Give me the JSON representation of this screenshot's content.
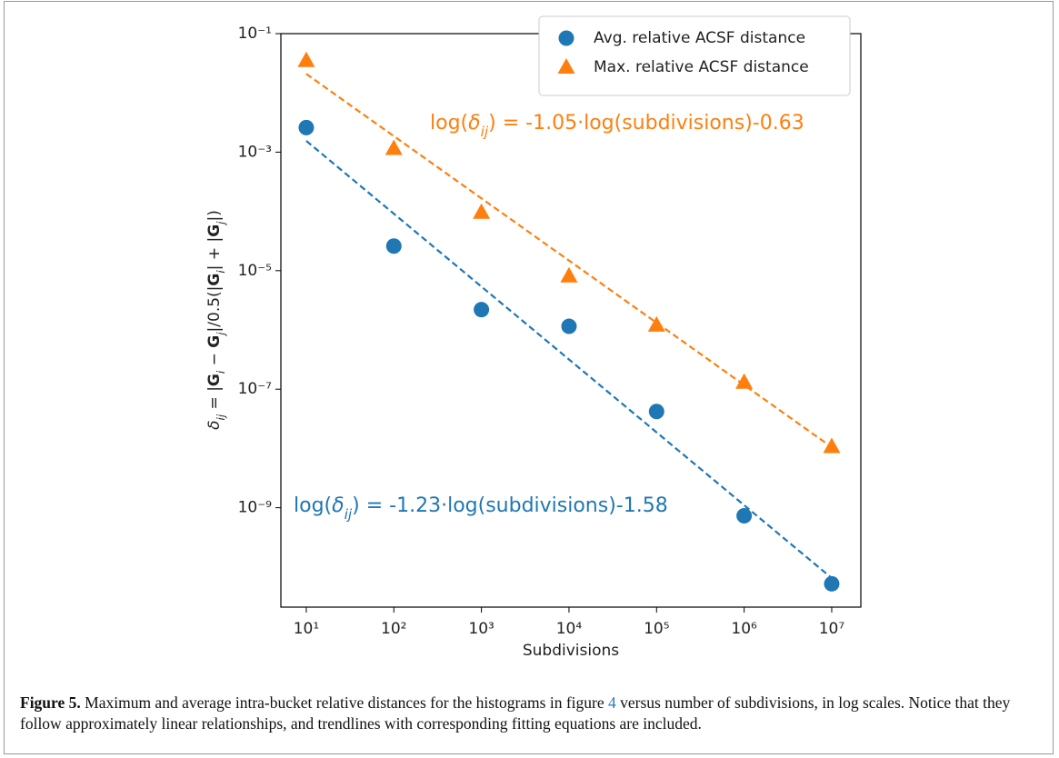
{
  "chart_data": {
    "type": "scatter",
    "log_x": true,
    "log_y": true,
    "xlabel": "Subdivisions",
    "ylabel_parts": [
      {
        "text": "δ",
        "style": "italic"
      },
      {
        "text": "ij",
        "style": "sub-italic"
      },
      {
        "text": " = |",
        "style": "normal"
      },
      {
        "text": "G",
        "style": "bold"
      },
      {
        "text": "i",
        "style": "sub-italic"
      },
      {
        "text": " − ",
        "style": "normal"
      },
      {
        "text": "G",
        "style": "bold"
      },
      {
        "text": "j",
        "style": "sub-italic"
      },
      {
        "text": "|/0.5(|",
        "style": "normal"
      },
      {
        "text": "G",
        "style": "bold"
      },
      {
        "text": "i",
        "style": "sub-italic"
      },
      {
        "text": "| + |",
        "style": "normal"
      },
      {
        "text": "G",
        "style": "bold"
      },
      {
        "text": "j",
        "style": "sub-italic"
      },
      {
        "text": "|)",
        "style": "normal"
      }
    ],
    "xlim": [
      5.13,
      21500000
    ],
    "ylim": [
      2.1e-11,
      0.1
    ],
    "xticks": [
      {
        "value": 10,
        "label": "10¹"
      },
      {
        "value": 100,
        "label": "10²"
      },
      {
        "value": 1000,
        "label": "10³"
      },
      {
        "value": 10000,
        "label": "10⁴"
      },
      {
        "value": 100000,
        "label": "10⁵"
      },
      {
        "value": 1000000,
        "label": "10⁶"
      },
      {
        "value": 10000000,
        "label": "10⁷"
      }
    ],
    "yticks": [
      {
        "value": 0.1,
        "label": "10⁻¹"
      },
      {
        "value": 0.001,
        "label": "10⁻³"
      },
      {
        "value": 1e-05,
        "label": "10⁻⁵"
      },
      {
        "value": 1e-07,
        "label": "10⁻⁷"
      },
      {
        "value": 1e-09,
        "label": "10⁻⁹"
      }
    ],
    "legend": "upper right",
    "x": [
      10,
      100,
      1000,
      10000,
      100000,
      1000000,
      10000000
    ],
    "series": [
      {
        "name": "Avg. relative ACSF distance",
        "color": "#1f77b4",
        "marker": "circle",
        "values": [
          0.0026,
          2.6e-05,
          2.2e-06,
          1.15e-06,
          4.2e-08,
          7.3e-10,
          5.2e-11
        ],
        "trend": {
          "x": [
            10,
            10000000
          ],
          "values": [
            0.00155,
            6.5e-11
          ]
        },
        "annotation": [
          {
            "text": "log(",
            "style": "normal"
          },
          {
            "text": "δ",
            "style": "italic"
          },
          {
            "text": "ij",
            "style": "sub-italic"
          },
          {
            "text": ") = -1.23·log(subdivisions)-1.58",
            "style": "normal"
          }
        ]
      },
      {
        "name": "Max. relative ACSF distance",
        "color": "#ff7f0e",
        "marker": "triangle",
        "values": [
          0.035,
          0.00115,
          9.6e-05,
          8.1e-06,
          1.2e-06,
          1.3e-07,
          1.07e-08
        ],
        "trend": {
          "x": [
            10,
            10000000
          ],
          "values": [
            0.0209,
            1.05e-08
          ]
        },
        "annotation": [
          {
            "text": "log(",
            "style": "normal"
          },
          {
            "text": "δ",
            "style": "italic"
          },
          {
            "text": "ij",
            "style": "sub-italic"
          },
          {
            "text": ") = -1.05·log(subdivisions)-0.63",
            "style": "normal"
          }
        ]
      }
    ]
  },
  "caption": {
    "label": "Figure 5.",
    "text_before": "Maximum and average intra-bucket relative distances for the histograms in figure ",
    "ref": "4",
    "text_after": " versus number of subdivisions, in log scales. Notice that they follow approximately linear relationships, and trendlines with corresponding fitting equations are included."
  }
}
